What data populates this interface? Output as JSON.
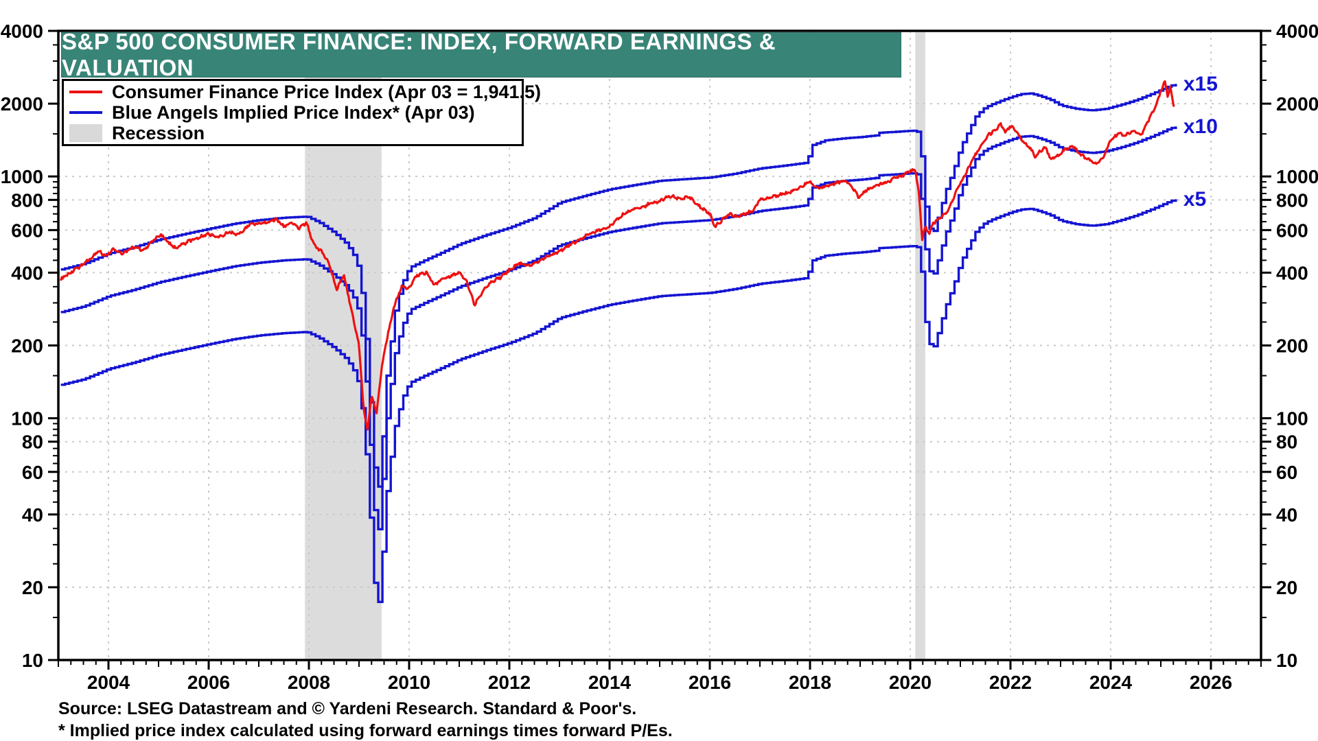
{
  "title": "S&P 500 CONSUMER FINANCE: INDEX, FORWARD EARNINGS & VALUATION",
  "legend": {
    "items": [
      {
        "label": "Consumer Finance Price Index (Apr 03 = 1,941.5)",
        "swatch": "line",
        "color": "#ee1111"
      },
      {
        "label": "Blue Angels Implied Price Index* (Apr 03)",
        "swatch": "line",
        "color": "#1414d2"
      },
      {
        "label": "Recession",
        "swatch": "box",
        "color": "#d9d9d9"
      }
    ]
  },
  "footer": {
    "source": "Source: LSEG Datastream and © Yardeni Research. Standard & Poor's.",
    "footnote": "* Implied price index calculated using forward earnings times forward P/Es."
  },
  "colors": {
    "price_line": "#ee1111",
    "blue_angels": "#1414d2",
    "recession": "#dcdcdc",
    "grid": "#c9c9c9",
    "frame": "#000000",
    "banner": "#388578"
  },
  "chart_data": {
    "type": "line",
    "title": "S&P 500 CONSUMER FINANCE: INDEX, FORWARD EARNINGS & VALUATION",
    "x_axis": {
      "min": 2003,
      "max": 2027,
      "tick_years": [
        2004,
        2006,
        2008,
        2010,
        2012,
        2014,
        2016,
        2018,
        2020,
        2022,
        2024,
        2026
      ]
    },
    "y_axis": {
      "scale": "log",
      "min": 10,
      "max": 4000,
      "ticks": [
        4000,
        2000,
        1000,
        800,
        600,
        400,
        200,
        100,
        80,
        60,
        40,
        20,
        10
      ],
      "gridline_values": [
        2000,
        1000,
        800,
        600,
        400,
        200,
        100,
        80,
        60,
        40,
        20
      ]
    },
    "recessions": [
      {
        "start": 2007.92,
        "end": 2009.45
      },
      {
        "start": 2020.1,
        "end": 2020.3
      }
    ],
    "series": [
      {
        "name": "Consumer Finance Price Index",
        "color": "#ee1111",
        "end_label_value": 1941.5,
        "points": [
          [
            2003.05,
            375
          ],
          [
            2003.2,
            395
          ],
          [
            2003.4,
            420
          ],
          [
            2003.6,
            450
          ],
          [
            2003.8,
            490
          ],
          [
            2003.95,
            470
          ],
          [
            2004.1,
            500
          ],
          [
            2004.3,
            480
          ],
          [
            2004.5,
            510
          ],
          [
            2004.7,
            495
          ],
          [
            2004.9,
            545
          ],
          [
            2005.05,
            575
          ],
          [
            2005.2,
            530
          ],
          [
            2005.35,
            505
          ],
          [
            2005.6,
            540
          ],
          [
            2005.8,
            560
          ],
          [
            2006.0,
            580
          ],
          [
            2006.2,
            560
          ],
          [
            2006.4,
            590
          ],
          [
            2006.6,
            575
          ],
          [
            2006.8,
            630
          ],
          [
            2007.0,
            640
          ],
          [
            2007.2,
            650
          ],
          [
            2007.35,
            668
          ],
          [
            2007.5,
            620
          ],
          [
            2007.65,
            645
          ],
          [
            2007.8,
            610
          ],
          [
            2007.95,
            645
          ],
          [
            2008.1,
            520
          ],
          [
            2008.25,
            490
          ],
          [
            2008.4,
            440
          ],
          [
            2008.55,
            340
          ],
          [
            2008.7,
            390
          ],
          [
            2008.85,
            280
          ],
          [
            2009.0,
            200
          ],
          [
            2009.1,
            105
          ],
          [
            2009.17,
            90
          ],
          [
            2009.25,
            125
          ],
          [
            2009.35,
            105
          ],
          [
            2009.45,
            160
          ],
          [
            2009.55,
            210
          ],
          [
            2009.7,
            290
          ],
          [
            2009.85,
            350
          ],
          [
            2010.0,
            345
          ],
          [
            2010.15,
            390
          ],
          [
            2010.35,
            400
          ],
          [
            2010.5,
            355
          ],
          [
            2010.65,
            375
          ],
          [
            2010.8,
            385
          ],
          [
            2011.0,
            400
          ],
          [
            2011.15,
            370
          ],
          [
            2011.3,
            295
          ],
          [
            2011.45,
            330
          ],
          [
            2011.6,
            360
          ],
          [
            2011.8,
            380
          ],
          [
            2012.0,
            410
          ],
          [
            2012.2,
            440
          ],
          [
            2012.4,
            425
          ],
          [
            2012.6,
            450
          ],
          [
            2012.8,
            470
          ],
          [
            2013.0,
            490
          ],
          [
            2013.2,
            520
          ],
          [
            2013.4,
            545
          ],
          [
            2013.6,
            580
          ],
          [
            2013.8,
            600
          ],
          [
            2014.0,
            620
          ],
          [
            2014.2,
            680
          ],
          [
            2014.4,
            720
          ],
          [
            2014.6,
            740
          ],
          [
            2014.8,
            770
          ],
          [
            2015.0,
            790
          ],
          [
            2015.2,
            830
          ],
          [
            2015.4,
            810
          ],
          [
            2015.6,
            820
          ],
          [
            2015.8,
            750
          ],
          [
            2016.0,
            700
          ],
          [
            2016.1,
            620
          ],
          [
            2016.25,
            660
          ],
          [
            2016.4,
            700
          ],
          [
            2016.55,
            680
          ],
          [
            2016.7,
            700
          ],
          [
            2016.85,
            720
          ],
          [
            2017.0,
            800
          ],
          [
            2017.2,
            820
          ],
          [
            2017.4,
            840
          ],
          [
            2017.6,
            860
          ],
          [
            2017.8,
            900
          ],
          [
            2018.0,
            950
          ],
          [
            2018.15,
            890
          ],
          [
            2018.3,
            910
          ],
          [
            2018.5,
            940
          ],
          [
            2018.7,
            960
          ],
          [
            2018.85,
            900
          ],
          [
            2018.97,
            820
          ],
          [
            2019.1,
            870
          ],
          [
            2019.25,
            905
          ],
          [
            2019.4,
            930
          ],
          [
            2019.55,
            950
          ],
          [
            2019.7,
            985
          ],
          [
            2019.85,
            1010
          ],
          [
            2020.0,
            1050
          ],
          [
            2020.1,
            1070
          ],
          [
            2020.17,
            860
          ],
          [
            2020.24,
            550
          ],
          [
            2020.3,
            620
          ],
          [
            2020.38,
            580
          ],
          [
            2020.45,
            640
          ],
          [
            2020.55,
            660
          ],
          [
            2020.65,
            690
          ],
          [
            2020.75,
            720
          ],
          [
            2020.85,
            800
          ],
          [
            2020.95,
            900
          ],
          [
            2021.1,
            1020
          ],
          [
            2021.25,
            1180
          ],
          [
            2021.4,
            1320
          ],
          [
            2021.55,
            1480
          ],
          [
            2021.7,
            1560
          ],
          [
            2021.8,
            1650
          ],
          [
            2021.9,
            1520
          ],
          [
            2022.0,
            1620
          ],
          [
            2022.1,
            1550
          ],
          [
            2022.25,
            1400
          ],
          [
            2022.4,
            1300
          ],
          [
            2022.5,
            1200
          ],
          [
            2022.6,
            1280
          ],
          [
            2022.7,
            1320
          ],
          [
            2022.8,
            1180
          ],
          [
            2022.95,
            1220
          ],
          [
            2023.1,
            1300
          ],
          [
            2023.25,
            1330
          ],
          [
            2023.4,
            1230
          ],
          [
            2023.55,
            1180
          ],
          [
            2023.7,
            1130
          ],
          [
            2023.85,
            1200
          ],
          [
            2024.0,
            1420
          ],
          [
            2024.15,
            1500
          ],
          [
            2024.3,
            1480
          ],
          [
            2024.45,
            1550
          ],
          [
            2024.6,
            1480
          ],
          [
            2024.75,
            1700
          ],
          [
            2024.9,
            1950
          ],
          [
            2025.0,
            2250
          ],
          [
            2025.08,
            2480
          ],
          [
            2025.14,
            2150
          ],
          [
            2025.19,
            2350
          ],
          [
            2025.26,
            1941.5
          ]
        ]
      },
      {
        "name": "Blue Angels Implied Price Index (forward earnings x P/E)",
        "color": "#1414d2",
        "multipliers": [
          5,
          10,
          15
        ],
        "multiplier_labels": [
          "x5",
          "x10",
          "x15"
        ],
        "earnings_points": [
          [
            2003.05,
            27.5
          ],
          [
            2003.5,
            29
          ],
          [
            2004.0,
            32
          ],
          [
            2004.5,
            34
          ],
          [
            2005.0,
            36.5
          ],
          [
            2005.5,
            38.5
          ],
          [
            2006.0,
            40.5
          ],
          [
            2006.5,
            42.5
          ],
          [
            2007.0,
            44
          ],
          [
            2007.5,
            45
          ],
          [
            2007.95,
            45.5
          ],
          [
            2008.2,
            43
          ],
          [
            2008.5,
            39
          ],
          [
            2008.75,
            35
          ],
          [
            2008.95,
            30
          ],
          [
            2009.05,
            22
          ],
          [
            2009.15,
            13
          ],
          [
            2009.25,
            6
          ],
          [
            2009.35,
            2.9
          ],
          [
            2009.45,
            5
          ],
          [
            2009.55,
            10
          ],
          [
            2009.7,
            18
          ],
          [
            2009.85,
            24
          ],
          [
            2010.0,
            28
          ],
          [
            2010.3,
            30
          ],
          [
            2010.6,
            32
          ],
          [
            2011.0,
            35
          ],
          [
            2011.5,
            38
          ],
          [
            2012.0,
            41
          ],
          [
            2012.5,
            45
          ],
          [
            2013.0,
            52
          ],
          [
            2013.5,
            55.5
          ],
          [
            2014.0,
            59
          ],
          [
            2014.5,
            61.5
          ],
          [
            2015.0,
            64
          ],
          [
            2015.5,
            65
          ],
          [
            2016.0,
            66
          ],
          [
            2016.5,
            68.5
          ],
          [
            2017.0,
            72
          ],
          [
            2017.5,
            74
          ],
          [
            2017.92,
            76
          ],
          [
            2018.05,
            90
          ],
          [
            2018.3,
            94
          ],
          [
            2018.7,
            96
          ],
          [
            2019.0,
            97
          ],
          [
            2019.3,
            98.5
          ],
          [
            2019.35,
            101
          ],
          [
            2019.7,
            102
          ],
          [
            2020.0,
            103
          ],
          [
            2020.13,
            103
          ],
          [
            2020.22,
            80
          ],
          [
            2020.3,
            50
          ],
          [
            2020.42,
            37
          ],
          [
            2020.55,
            45
          ],
          [
            2020.7,
            58
          ],
          [
            2020.85,
            70
          ],
          [
            2021.0,
            88
          ],
          [
            2021.15,
            102
          ],
          [
            2021.3,
            118
          ],
          [
            2021.45,
            127
          ],
          [
            2021.6,
            132
          ],
          [
            2021.8,
            137
          ],
          [
            2022.0,
            142
          ],
          [
            2022.2,
            146
          ],
          [
            2022.4,
            147
          ],
          [
            2022.6,
            143
          ],
          [
            2022.8,
            138
          ],
          [
            2023.0,
            131
          ],
          [
            2023.3,
            127
          ],
          [
            2023.6,
            125
          ],
          [
            2023.9,
            127
          ],
          [
            2024.2,
            132
          ],
          [
            2024.5,
            138
          ],
          [
            2024.8,
            146
          ],
          [
            2025.0,
            152
          ],
          [
            2025.15,
            157
          ],
          [
            2025.3,
            161
          ]
        ]
      }
    ],
    "multiple_labels": [
      {
        "text": "x15",
        "value": 2420,
        "x_year": 2025.45
      },
      {
        "text": "x10",
        "value": 1615,
        "x_year": 2025.45
      },
      {
        "text": "x5",
        "value": 807,
        "x_year": 2025.45
      }
    ]
  }
}
